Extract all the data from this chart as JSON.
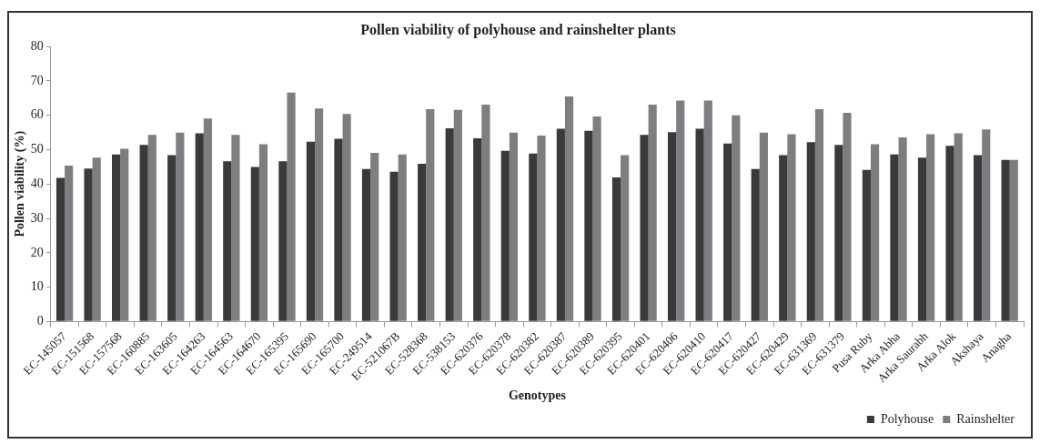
{
  "chart_data": {
    "type": "bar",
    "title": "Pollen viability of polyhouse and rainshelter plants",
    "xlabel": "Genotypes",
    "ylabel": "Pollen viability (%)",
    "categories": [
      "EC-145057",
      "EC-151568",
      "EC-157568",
      "EC-160885",
      "EC-163605",
      "EC-164263",
      "EC-164563",
      "EC-164670",
      "EC-165395",
      "EC-165690",
      "EC-165700",
      "EC-249514",
      "EC-521067B",
      "EC-528368",
      "EC-538153",
      "EC-620376",
      "EC-620378",
      "EC-620382",
      "EC-620387",
      "EC-620389",
      "EC-620395",
      "EC-620401",
      "EC-620406",
      "EC-620410",
      "EC-620417",
      "EC-620427",
      "EC-620429",
      "EC-631369",
      "EC-631379",
      "Pusa Ruby",
      "Arka Abha",
      "Arka Saurabh",
      "Arka Alok",
      "Akshaya",
      "Anagha"
    ],
    "series": [
      {
        "name": "Polyhouse",
        "color": "#3a3a3a",
        "values": [
          41.8,
          44.5,
          48.6,
          51.4,
          48.4,
          54.8,
          46.6,
          45.0,
          46.6,
          52.3,
          53.2,
          44.4,
          43.6,
          45.9,
          56.2,
          53.3,
          49.7,
          48.9,
          56.1,
          55.5,
          41.9,
          54.3,
          55.1,
          56.1,
          51.8,
          44.4,
          48.4,
          52.2,
          51.4,
          44.1,
          48.6,
          47.7,
          51.1,
          48.4,
          47.0
        ]
      },
      {
        "name": "Rainshelter",
        "color": "#7d7e82",
        "values": [
          45.4,
          47.7,
          50.3,
          54.3,
          55.0,
          59.1,
          54.3,
          51.6,
          66.6,
          62.0,
          60.4,
          49.1,
          48.6,
          61.8,
          61.6,
          63.1,
          55.0,
          54.1,
          65.5,
          59.7,
          48.4,
          63.1,
          64.3,
          64.3,
          60.0,
          55.0,
          54.5,
          61.8,
          60.7,
          51.6,
          53.6,
          54.5,
          54.8,
          55.9,
          47.0
        ]
      }
    ],
    "ylim": [
      0,
      80
    ],
    "yticks": [
      0,
      10,
      20,
      30,
      40,
      50,
      60,
      70,
      80
    ],
    "grid": false,
    "legend": "bottom right"
  }
}
